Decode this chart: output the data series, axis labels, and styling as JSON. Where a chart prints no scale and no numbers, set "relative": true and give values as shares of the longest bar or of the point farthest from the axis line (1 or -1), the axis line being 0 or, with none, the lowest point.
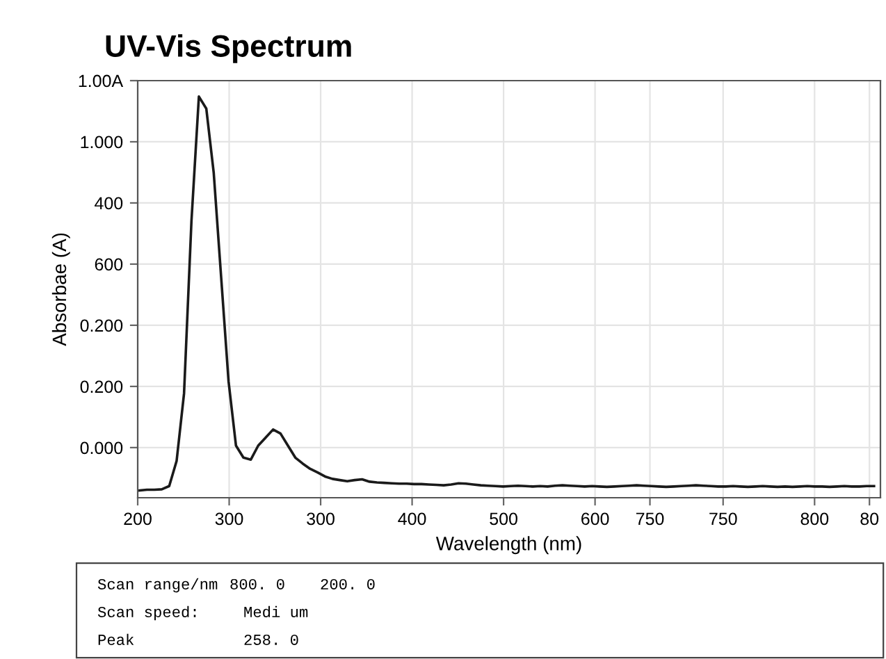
{
  "chart_data": {
    "type": "line",
    "title": "UV-Vis Spectrum",
    "xlabel": "Wavelength (nm)",
    "ylabel": "Absorbae (A)",
    "relative": true,
    "categories": [
      null,
      null,
      null,
      null,
      null,
      null,
      null,
      null,
      null,
      null,
      null,
      null,
      null,
      null,
      null,
      null,
      null,
      null,
      null,
      null,
      null,
      null,
      null,
      null,
      null,
      null,
      null,
      null,
      null,
      null,
      null,
      null,
      null,
      null,
      null,
      null,
      null,
      null,
      null,
      null,
      null,
      null,
      null,
      null,
      null,
      null,
      null,
      null,
      null,
      null,
      null,
      null,
      null,
      null,
      null,
      null,
      null,
      null,
      null,
      null,
      null,
      null,
      null,
      null,
      null,
      null,
      null,
      null,
      null,
      null,
      null,
      null,
      null,
      null,
      null,
      null,
      null,
      null,
      null,
      null,
      null,
      null,
      null,
      null,
      null,
      null,
      null,
      null,
      null,
      null,
      null,
      null,
      null,
      null,
      null,
      null,
      null,
      null,
      null,
      null
    ],
    "series": [
      {
        "color": "#1a1a1a",
        "values": [
          0.018,
          0.02,
          0.02,
          0.021,
          0.029,
          0.092,
          0.26,
          0.69,
          1.0,
          0.97,
          0.81,
          0.55,
          0.29,
          0.13,
          0.1,
          0.095,
          0.13,
          0.15,
          0.17,
          0.16,
          0.13,
          0.1,
          0.085,
          0.072,
          0.063,
          0.053,
          0.047,
          0.044,
          0.041,
          0.044,
          0.046,
          0.04,
          0.038,
          0.037,
          0.036,
          0.035,
          0.035,
          0.034,
          0.034,
          0.033,
          0.032,
          0.031,
          0.033,
          0.036,
          0.035,
          0.033,
          0.031,
          0.03,
          0.029,
          0.028,
          0.029,
          0.03,
          0.029,
          0.028,
          0.029,
          0.028,
          0.03,
          0.031,
          0.03,
          0.029,
          0.028,
          0.029,
          0.028,
          0.027,
          0.028,
          0.029,
          0.03,
          0.031,
          0.03,
          0.029,
          0.028,
          0.027,
          0.028,
          0.029,
          0.03,
          0.031,
          0.03,
          0.029,
          0.028,
          0.028,
          0.029,
          0.028,
          0.027,
          0.028,
          0.029,
          0.028,
          0.027,
          0.028,
          0.027,
          0.028,
          0.029,
          0.028,
          0.028,
          0.027,
          0.028,
          0.029,
          0.028,
          0.028,
          0.029,
          0.029
        ]
      }
    ],
    "grid": true,
    "marker": "none",
    "line_style": "solid",
    "annotations": [
      "0.000",
      "0.200",
      "0.200",
      "600",
      "400",
      "1.000",
      "1.00A",
      "200",
      "300",
      "300",
      "400",
      "500",
      "600",
      "750",
      "750",
      "800",
      "80",
      "Scan range/nm",
      "800. 0",
      "200. 0",
      "Scan speed:",
      "Medi um",
      "Peak",
      "258. 0"
    ]
  }
}
